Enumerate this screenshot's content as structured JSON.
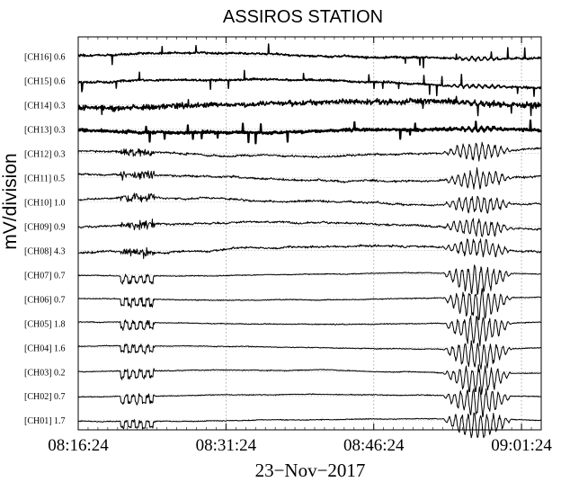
{
  "chart_data": {
    "type": "line",
    "title": "ASSIROS STATION",
    "xlabel": "23−Nov−2017",
    "ylabel": "mV/division",
    "x_range": [
      "08:16:24",
      "09:03:24"
    ],
    "x_ticks": [
      "08:16:24",
      "08:31:24",
      "08:46:24",
      "09:01:24"
    ],
    "grid": true,
    "series": [
      {
        "name": "[CH16]",
        "label": "[CH16] 0.6"
      },
      {
        "name": "[CH15]",
        "label": "[CH15] 0.6"
      },
      {
        "name": "[CH14]",
        "label": "[CH14] 0.3"
      },
      {
        "name": "[CH13]",
        "label": "[CH13] 0.3"
      },
      {
        "name": "[CH12]",
        "label": "[CH12] 0.3"
      },
      {
        "name": "[CH11]",
        "label": "[CH11] 0.5"
      },
      {
        "name": "[CH10]",
        "label": "[CH10] 1.0"
      },
      {
        "name": "[CH09]",
        "label": "[CH09] 0.9"
      },
      {
        "name": "[CH08]",
        "label": "[CH08] 4.3"
      },
      {
        "name": "[CH07]",
        "label": "[CH07] 0.7"
      },
      {
        "name": "[CH06]",
        "label": "[CH06] 0.7"
      },
      {
        "name": "[CH05]",
        "label": "[CH05] 1.8"
      },
      {
        "name": "[CH04]",
        "label": "[CH04] 1.6"
      },
      {
        "name": "[CH03]",
        "label": "[CH03] 0.2"
      },
      {
        "name": "[CH02]",
        "label": "[CH02] 0.7"
      },
      {
        "name": "[CH01]",
        "label": "[CH01] 1.7"
      }
    ]
  }
}
